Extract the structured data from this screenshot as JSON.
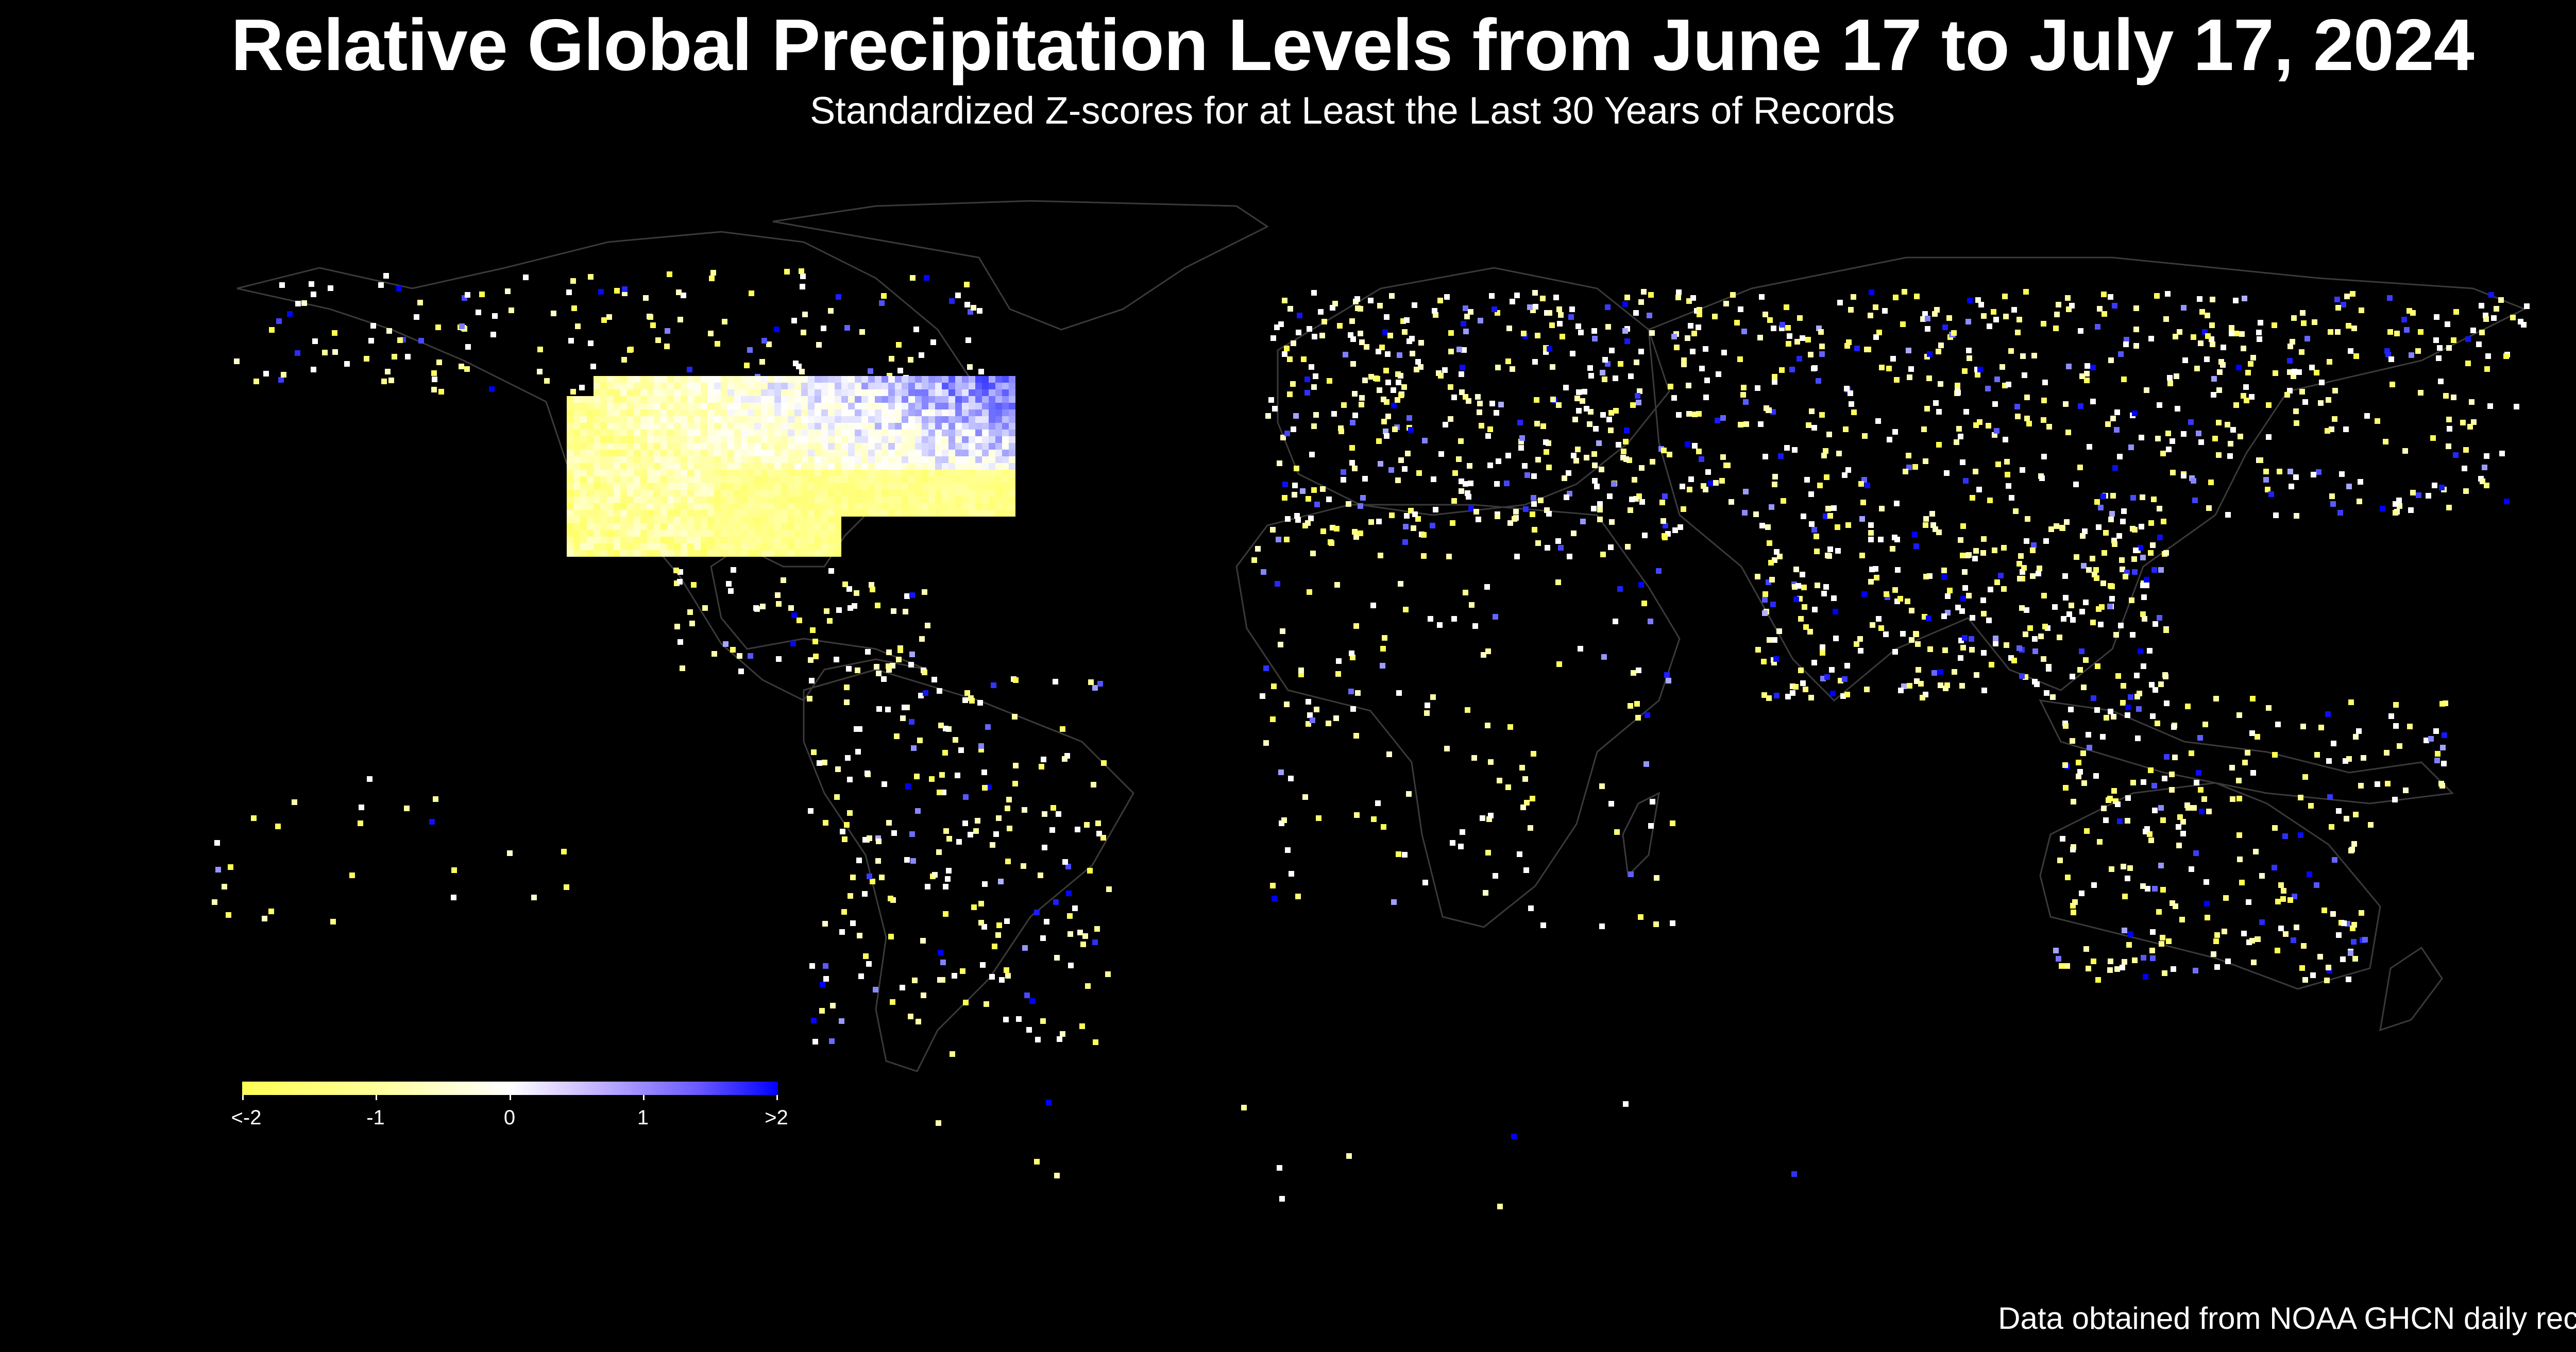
{
  "header": {
    "title": "Relative Global Precipitation Levels from June 17 to July 17, 2024",
    "subtitle": "Standardized Z-scores for at Least the Last 30 Years of Records"
  },
  "footer": {
    "credit": "Data obtained from NOAA GHCN daily records"
  },
  "legend": {
    "ticks": [
      "<-2",
      "-1",
      "0",
      "1",
      ">2"
    ],
    "tick_values": [
      -2,
      -1,
      0,
      1,
      2
    ],
    "color_low": "#ffff55",
    "color_mid": "#ffffff",
    "color_high": "#0000ff"
  },
  "colors": {
    "background": "#000000",
    "border": "#3a3a3a"
  }
}
